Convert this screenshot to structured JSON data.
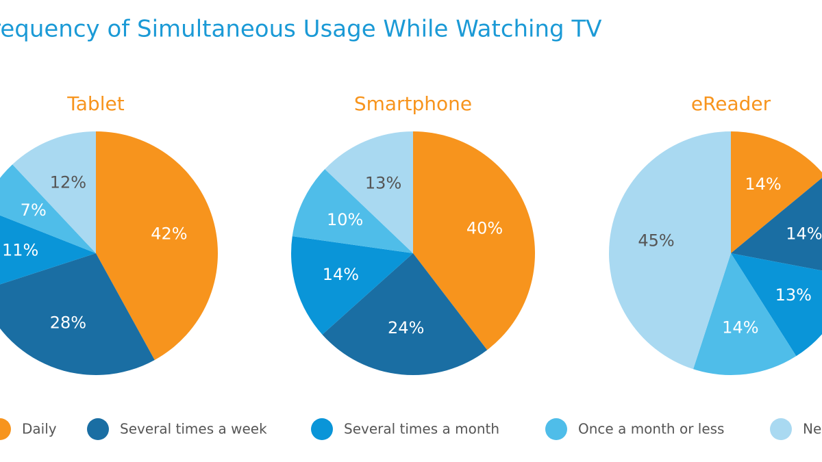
{
  "title": "Frequency of Simultaneous Usage While Watching TV",
  "chart_data": [
    {
      "type": "pie",
      "title": "Tablet",
      "categories": [
        "Daily",
        "Several times a week",
        "Several times a month",
        "Once a month or less",
        "Never"
      ],
      "colors": [
        "#f7941d",
        "#1a6ea3",
        "#0a95d8",
        "#4fbde9",
        "#a9d9f1"
      ],
      "values": [
        42,
        28,
        11,
        7,
        12
      ],
      "value_labels": [
        "42%",
        "28%",
        "11%",
        "7%",
        "12%"
      ]
    },
    {
      "type": "pie",
      "title": "Smartphone",
      "categories": [
        "Daily",
        "Several times a week",
        "Several times a month",
        "Once a month or less",
        "Never"
      ],
      "colors": [
        "#f7941d",
        "#1a6ea3",
        "#0a95d8",
        "#4fbde9",
        "#a9d9f1"
      ],
      "values": [
        40,
        24,
        14,
        10,
        13
      ],
      "value_labels": [
        "40%",
        "24%",
        "14%",
        "10%",
        "13%"
      ]
    },
    {
      "type": "pie",
      "title": "eReader",
      "categories": [
        "Daily",
        "Several times a week",
        "Several times a month",
        "Once a month or less",
        "Never"
      ],
      "colors": [
        "#f7941d",
        "#1a6ea3",
        "#0a95d8",
        "#4fbde9",
        "#a9d9f1"
      ],
      "values": [
        14,
        14,
        13,
        14,
        45
      ],
      "value_labels": [
        "14%",
        "14%",
        "13%",
        "14%",
        "45%"
      ]
    }
  ]
}
